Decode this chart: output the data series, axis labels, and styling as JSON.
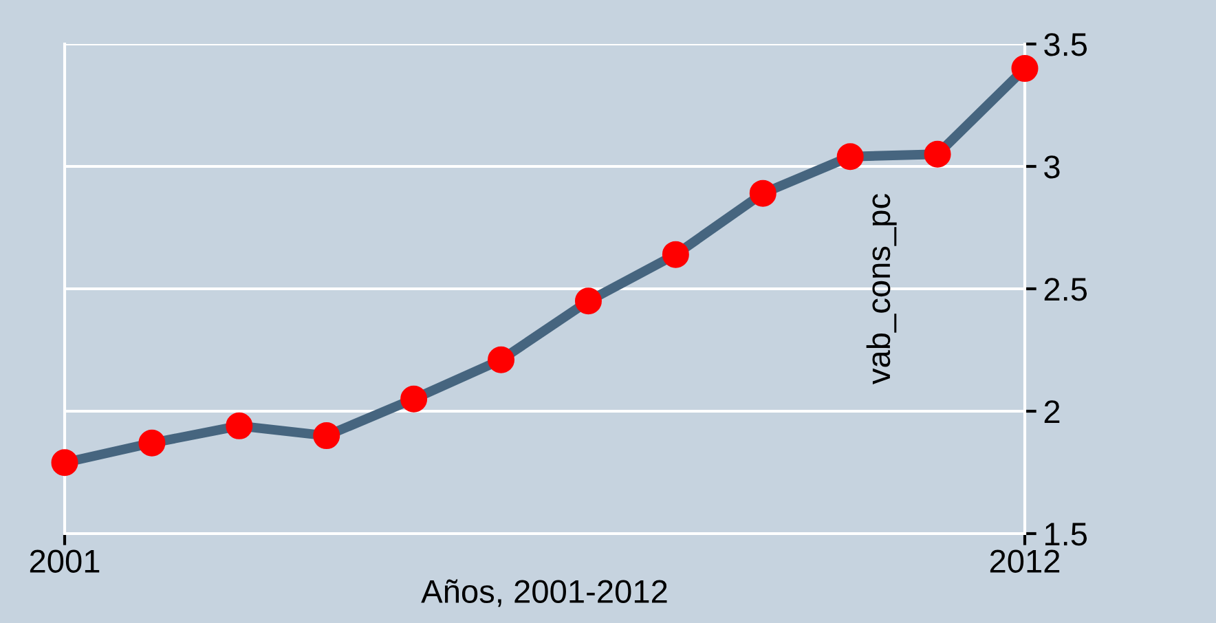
{
  "chart_data": {
    "type": "line",
    "xlabel": "Años, 2001-2012",
    "ylabel": "vab_cons_pc",
    "x": [
      2001,
      2002,
      2003,
      2004,
      2005,
      2006,
      2007,
      2008,
      2009,
      2010,
      2011,
      2012
    ],
    "series": [
      {
        "color": "#46657f",
        "colors": [
          "#ff0000",
          "#ff0000",
          "#ff0000",
          "#ff0000",
          "#ff0000",
          "#ff0000",
          "#ff0000",
          "#ff0000",
          "#ff0000",
          "#ff0000",
          "#ff0000",
          "#ff0000"
        ],
        "values": [
          1.79,
          1.87,
          1.94,
          1.9,
          2.05,
          2.21,
          2.45,
          2.64,
          2.89,
          3.04,
          3.05,
          3.4
        ]
      }
    ],
    "xlim": [
      2001,
      2012
    ],
    "xticks": [
      2001,
      2012
    ],
    "ylim": [
      1.5,
      3.5
    ],
    "yticks": [
      1.5,
      2,
      2.5,
      3,
      3.5
    ],
    "grid": "y",
    "marker": "circle",
    "line_style": "solid"
  }
}
